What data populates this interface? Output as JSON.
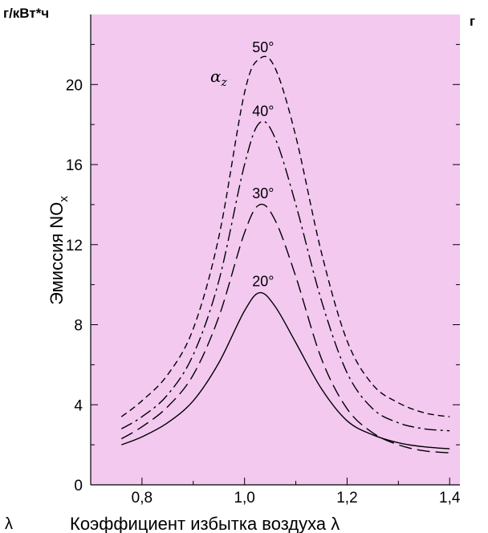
{
  "chart_data": {
    "type": "line",
    "y_unit": "г/кВт*ч",
    "ylabel": "Эмиссия NO",
    "ylabel_sub": "x",
    "xlabel": "Коэффициент избытка воздуха λ",
    "left_fragment": "λ",
    "right_fragment_top": "г",
    "xlim": [
      0.7,
      1.42
    ],
    "ylim": [
      0,
      23.5
    ],
    "x_ticks": [
      0.8,
      1.0,
      1.2,
      1.4
    ],
    "x_tick_labels": [
      "0,8",
      "1,0",
      "1,2",
      "1,4"
    ],
    "y_ticks": [
      0,
      4,
      8,
      12,
      16,
      20
    ],
    "y_tick_labels": [
      "0",
      "4",
      "8",
      "12",
      "16",
      "20"
    ],
    "legend_title": "α",
    "legend_title_sub": "z",
    "background_color": "#f3c9f0",
    "series": [
      {
        "name": "20°",
        "dash": "solid",
        "x": [
          0.76,
          0.8,
          0.85,
          0.9,
          0.95,
          1.0,
          1.03,
          1.06,
          1.1,
          1.15,
          1.2,
          1.25,
          1.3,
          1.35,
          1.4
        ],
        "y": [
          2.0,
          2.4,
          3.1,
          4.2,
          6.1,
          8.7,
          9.6,
          8.9,
          7.1,
          4.8,
          3.2,
          2.5,
          2.1,
          1.9,
          1.8
        ]
      },
      {
        "name": "30°",
        "dash": "long-dash",
        "x": [
          0.76,
          0.8,
          0.85,
          0.9,
          0.95,
          1.0,
          1.03,
          1.06,
          1.1,
          1.15,
          1.2,
          1.25,
          1.3,
          1.35,
          1.4
        ],
        "y": [
          2.3,
          2.9,
          3.9,
          5.5,
          8.4,
          12.6,
          14.0,
          13.2,
          10.4,
          6.3,
          3.8,
          2.6,
          2.0,
          1.7,
          1.6
        ]
      },
      {
        "name": "40°",
        "dash": "dash-dot",
        "x": [
          0.76,
          0.8,
          0.85,
          0.9,
          0.95,
          1.0,
          1.03,
          1.06,
          1.1,
          1.15,
          1.2,
          1.25,
          1.3,
          1.35,
          1.4
        ],
        "y": [
          2.8,
          3.4,
          4.5,
          6.5,
          10.2,
          16.0,
          18.1,
          17.3,
          14.0,
          9.2,
          5.6,
          3.8,
          3.1,
          2.8,
          2.7
        ]
      },
      {
        "name": "50°",
        "dash": "short-dash",
        "x": [
          0.76,
          0.8,
          0.85,
          0.9,
          0.95,
          1.0,
          1.03,
          1.06,
          1.1,
          1.15,
          1.2,
          1.25,
          1.3,
          1.35,
          1.4
        ],
        "y": [
          3.4,
          4.2,
          5.5,
          7.8,
          12.4,
          19.6,
          21.3,
          20.8,
          17.4,
          11.6,
          7.2,
          5.0,
          4.1,
          3.6,
          3.4
        ]
      }
    ]
  }
}
